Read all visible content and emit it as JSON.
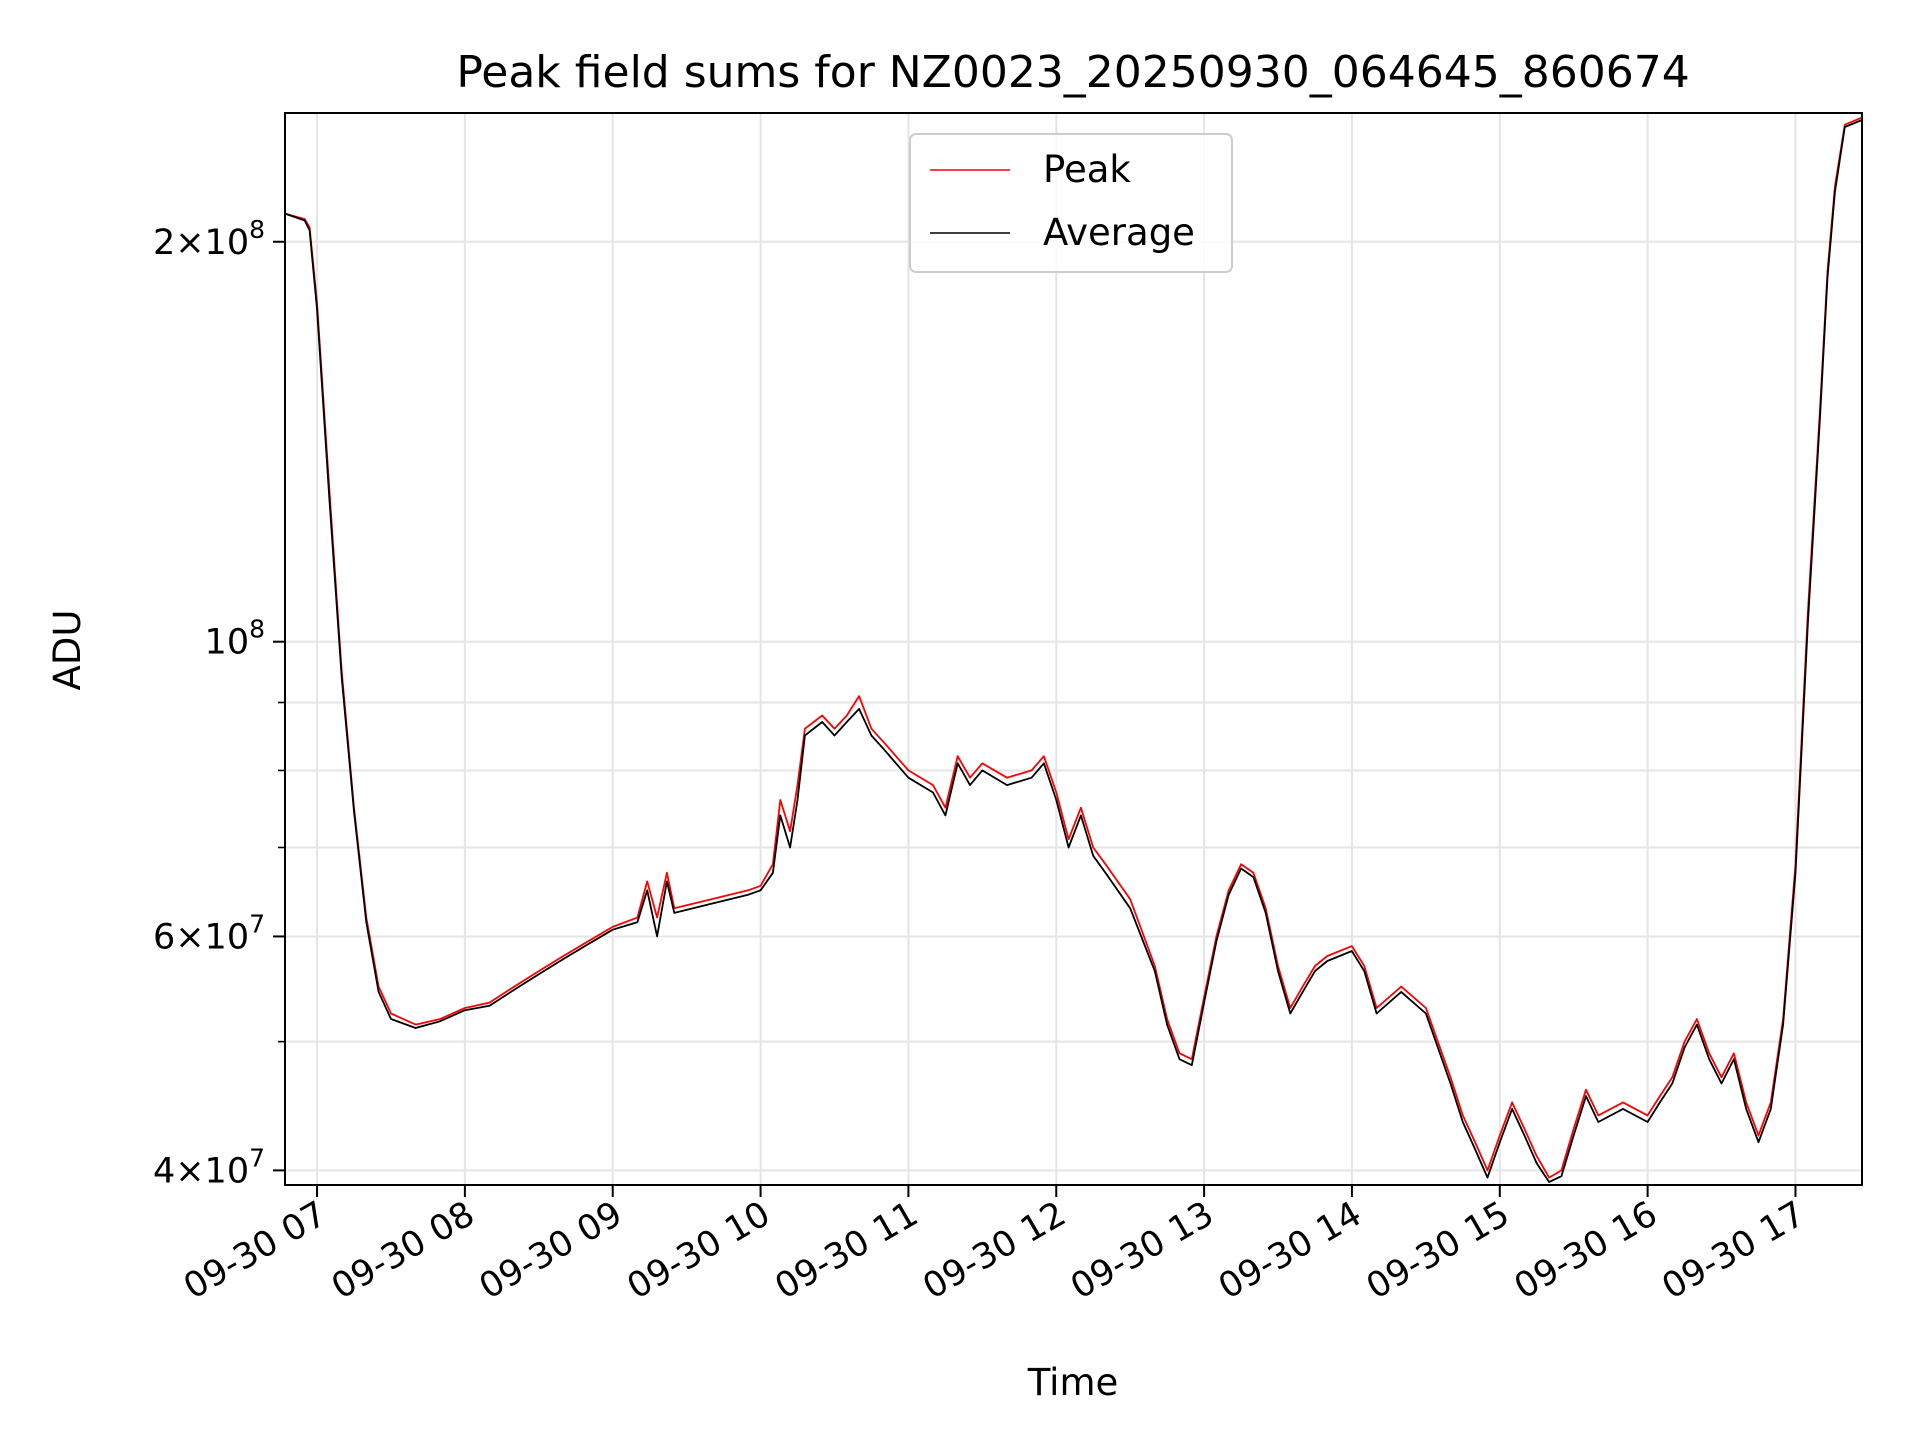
{
  "chart_data": {
    "type": "line",
    "title": "Peak field sums for NZ0023_20250930_064645_860674",
    "xlabel": "Time",
    "ylabel": "ADU",
    "yscale": "log",
    "xlim": [
      "09-30 06:47",
      "09-30 17:27"
    ],
    "ylim": [
      39000000,
      250000000
    ],
    "xticks": [
      "09-30 07",
      "09-30 08",
      "09-30 09",
      "09-30 10",
      "09-30 11",
      "09-30 12",
      "09-30 13",
      "09-30 14",
      "09-30 15",
      "09-30 16",
      "09-30 17"
    ],
    "yticks": [
      {
        "value": 40000000,
        "base": "4×10",
        "exp": "7"
      },
      {
        "value": 60000000,
        "base": "6×10",
        "exp": "7"
      },
      {
        "value": 100000000,
        "base": "10",
        "exp": "8"
      },
      {
        "value": 200000000,
        "base": "2×10",
        "exp": "8"
      }
    ],
    "y_minor_ticks": [
      50000000,
      70000000,
      80000000,
      90000000
    ],
    "grid": true,
    "legend_position": "top-center",
    "series": [
      {
        "name": "Peak",
        "color": "#ff0000",
        "points": [
          [
            "09-30 06:47",
            210000000
          ],
          [
            "09-30 06:55",
            208000000
          ],
          [
            "09-30 06:57",
            205000000
          ],
          [
            "09-30 07:00",
            180000000
          ],
          [
            "09-30 07:05",
            130000000
          ],
          [
            "09-30 07:10",
            95000000
          ],
          [
            "09-30 07:15",
            75000000
          ],
          [
            "09-30 07:20",
            62000000
          ],
          [
            "09-30 07:25",
            55000000
          ],
          [
            "09-30 07:30",
            52500000
          ],
          [
            "09-30 07:40",
            51500000
          ],
          [
            "09-30 07:50",
            52000000
          ],
          [
            "09-30 08:00",
            53000000
          ],
          [
            "09-30 08:10",
            53500000
          ],
          [
            "09-30 08:20",
            55000000
          ],
          [
            "09-30 08:30",
            56500000
          ],
          [
            "09-30 08:40",
            58000000
          ],
          [
            "09-30 08:50",
            59500000
          ],
          [
            "09-30 09:00",
            61000000
          ],
          [
            "09-30 09:10",
            62000000
          ],
          [
            "09-30 09:14",
            66000000
          ],
          [
            "09-30 09:18",
            62000000
          ],
          [
            "09-30 09:22",
            67000000
          ],
          [
            "09-30 09:25",
            63000000
          ],
          [
            "09-30 09:40",
            64000000
          ],
          [
            "09-30 09:55",
            65000000
          ],
          [
            "09-30 10:00",
            65500000
          ],
          [
            "09-30 10:05",
            68000000
          ],
          [
            "09-30 10:08",
            76000000
          ],
          [
            "09-30 10:12",
            72000000
          ],
          [
            "09-30 10:15",
            78000000
          ],
          [
            "09-30 10:18",
            86000000
          ],
          [
            "09-30 10:25",
            88000000
          ],
          [
            "09-30 10:30",
            86000000
          ],
          [
            "09-30 10:35",
            88000000
          ],
          [
            "09-30 10:40",
            91000000
          ],
          [
            "09-30 10:45",
            86000000
          ],
          [
            "09-30 10:50",
            84000000
          ],
          [
            "09-30 11:00",
            80000000
          ],
          [
            "09-30 11:10",
            78000000
          ],
          [
            "09-30 11:15",
            75000000
          ],
          [
            "09-30 11:20",
            82000000
          ],
          [
            "09-30 11:25",
            79000000
          ],
          [
            "09-30 11:30",
            81000000
          ],
          [
            "09-30 11:40",
            79000000
          ],
          [
            "09-30 11:50",
            80000000
          ],
          [
            "09-30 11:55",
            82000000
          ],
          [
            "09-30 12:00",
            77000000
          ],
          [
            "09-30 12:05",
            71000000
          ],
          [
            "09-30 12:10",
            75000000
          ],
          [
            "09-30 12:15",
            70000000
          ],
          [
            "09-30 12:20",
            68000000
          ],
          [
            "09-30 12:30",
            64000000
          ],
          [
            "09-30 12:40",
            57000000
          ],
          [
            "09-30 12:45",
            52000000
          ],
          [
            "09-30 12:50",
            49000000
          ],
          [
            "09-30 12:55",
            48500000
          ],
          [
            "09-30 13:00",
            54000000
          ],
          [
            "09-30 13:05",
            60000000
          ],
          [
            "09-30 13:10",
            65000000
          ],
          [
            "09-30 13:15",
            68000000
          ],
          [
            "09-30 13:20",
            67000000
          ],
          [
            "09-30 13:25",
            63000000
          ],
          [
            "09-30 13:30",
            57000000
          ],
          [
            "09-30 13:35",
            53000000
          ],
          [
            "09-30 13:40",
            55000000
          ],
          [
            "09-30 13:45",
            57000000
          ],
          [
            "09-30 13:50",
            58000000
          ],
          [
            "09-30 14:00",
            59000000
          ],
          [
            "09-30 14:05",
            57000000
          ],
          [
            "09-30 14:10",
            53000000
          ],
          [
            "09-30 14:20",
            55000000
          ],
          [
            "09-30 14:30",
            53000000
          ],
          [
            "09-30 14:40",
            47000000
          ],
          [
            "09-30 14:45",
            44000000
          ],
          [
            "09-30 14:50",
            42000000
          ],
          [
            "09-30 14:55",
            40000000
          ],
          [
            "09-30 15:00",
            42500000
          ],
          [
            "09-30 15:05",
            45000000
          ],
          [
            "09-30 15:10",
            43000000
          ],
          [
            "09-30 15:15",
            41000000
          ],
          [
            "09-30 15:20",
            39500000
          ],
          [
            "09-30 15:25",
            40000000
          ],
          [
            "09-30 15:30",
            43000000
          ],
          [
            "09-30 15:35",
            46000000
          ],
          [
            "09-30 15:40",
            44000000
          ],
          [
            "09-30 15:50",
            45000000
          ],
          [
            "09-30 16:00",
            44000000
          ],
          [
            "09-30 16:05",
            45500000
          ],
          [
            "09-30 16:10",
            47000000
          ],
          [
            "09-30 16:15",
            50000000
          ],
          [
            "09-30 16:20",
            52000000
          ],
          [
            "09-30 16:25",
            49000000
          ],
          [
            "09-30 16:30",
            47000000
          ],
          [
            "09-30 16:35",
            49000000
          ],
          [
            "09-30 16:40",
            45000000
          ],
          [
            "09-30 16:45",
            42500000
          ],
          [
            "09-30 16:50",
            45000000
          ],
          [
            "09-30 16:55",
            52000000
          ],
          [
            "09-30 17:00",
            68000000
          ],
          [
            "09-30 17:05",
            105000000
          ],
          [
            "09-30 17:10",
            150000000
          ],
          [
            "09-30 17:13",
            190000000
          ],
          [
            "09-30 17:16",
            220000000
          ],
          [
            "09-30 17:20",
            245000000
          ],
          [
            "09-30 17:27",
            248000000
          ]
        ]
      },
      {
        "name": "Average",
        "color": "#000000",
        "points": [
          [
            "09-30 06:47",
            210000000
          ],
          [
            "09-30 06:55",
            207500000
          ],
          [
            "09-30 06:57",
            204000000
          ],
          [
            "09-30 07:00",
            178000000
          ],
          [
            "09-30 07:05",
            128000000
          ],
          [
            "09-30 07:10",
            94000000
          ],
          [
            "09-30 07:15",
            74500000
          ],
          [
            "09-30 07:20",
            61500000
          ],
          [
            "09-30 07:25",
            54500000
          ],
          [
            "09-30 07:30",
            52000000
          ],
          [
            "09-30 07:40",
            51200000
          ],
          [
            "09-30 07:50",
            51800000
          ],
          [
            "09-30 08:00",
            52800000
          ],
          [
            "09-30 08:10",
            53200000
          ],
          [
            "09-30 08:20",
            54700000
          ],
          [
            "09-30 08:30",
            56200000
          ],
          [
            "09-30 08:40",
            57700000
          ],
          [
            "09-30 08:50",
            59200000
          ],
          [
            "09-30 09:00",
            60700000
          ],
          [
            "09-30 09:10",
            61500000
          ],
          [
            "09-30 09:14",
            65000000
          ],
          [
            "09-30 09:18",
            60000000
          ],
          [
            "09-30 09:22",
            66000000
          ],
          [
            "09-30 09:25",
            62500000
          ],
          [
            "09-30 09:40",
            63500000
          ],
          [
            "09-30 09:55",
            64500000
          ],
          [
            "09-30 10:00",
            65000000
          ],
          [
            "09-30 10:05",
            67000000
          ],
          [
            "09-30 10:08",
            74000000
          ],
          [
            "09-30 10:12",
            70000000
          ],
          [
            "09-30 10:15",
            76000000
          ],
          [
            "09-30 10:18",
            85000000
          ],
          [
            "09-30 10:25",
            87000000
          ],
          [
            "09-30 10:30",
            85000000
          ],
          [
            "09-30 10:35",
            87000000
          ],
          [
            "09-30 10:40",
            89000000
          ],
          [
            "09-30 10:45",
            85000000
          ],
          [
            "09-30 10:50",
            83000000
          ],
          [
            "09-30 11:00",
            79000000
          ],
          [
            "09-30 11:10",
            77000000
          ],
          [
            "09-30 11:15",
            74000000
          ],
          [
            "09-30 11:20",
            81000000
          ],
          [
            "09-30 11:25",
            78000000
          ],
          [
            "09-30 11:30",
            80000000
          ],
          [
            "09-30 11:40",
            78000000
          ],
          [
            "09-30 11:50",
            79000000
          ],
          [
            "09-30 11:55",
            81000000
          ],
          [
            "09-30 12:00",
            76000000
          ],
          [
            "09-30 12:05",
            70000000
          ],
          [
            "09-30 12:10",
            74000000
          ],
          [
            "09-30 12:15",
            69000000
          ],
          [
            "09-30 12:20",
            67000000
          ],
          [
            "09-30 12:30",
            63000000
          ],
          [
            "09-30 12:40",
            56500000
          ],
          [
            "09-30 12:45",
            51500000
          ],
          [
            "09-30 12:50",
            48500000
          ],
          [
            "09-30 12:55",
            48000000
          ],
          [
            "09-30 13:00",
            53500000
          ],
          [
            "09-30 13:05",
            59500000
          ],
          [
            "09-30 13:10",
            64500000
          ],
          [
            "09-30 13:15",
            67500000
          ],
          [
            "09-30 13:20",
            66500000
          ],
          [
            "09-30 13:25",
            62500000
          ],
          [
            "09-30 13:30",
            56500000
          ],
          [
            "09-30 13:35",
            52500000
          ],
          [
            "09-30 13:40",
            54500000
          ],
          [
            "09-30 13:45",
            56500000
          ],
          [
            "09-30 13:50",
            57500000
          ],
          [
            "09-30 14:00",
            58500000
          ],
          [
            "09-30 14:05",
            56500000
          ],
          [
            "09-30 14:10",
            52500000
          ],
          [
            "09-30 14:20",
            54500000
          ],
          [
            "09-30 14:30",
            52500000
          ],
          [
            "09-30 14:40",
            46500000
          ],
          [
            "09-30 14:45",
            43500000
          ],
          [
            "09-30 14:50",
            41500000
          ],
          [
            "09-30 14:55",
            39500000
          ],
          [
            "09-30 15:00",
            42000000
          ],
          [
            "09-30 15:05",
            44500000
          ],
          [
            "09-30 15:10",
            42500000
          ],
          [
            "09-30 15:15",
            40500000
          ],
          [
            "09-30 15:20",
            39200000
          ],
          [
            "09-30 15:25",
            39600000
          ],
          [
            "09-30 15:30",
            42500000
          ],
          [
            "09-30 15:35",
            45500000
          ],
          [
            "09-30 15:40",
            43500000
          ],
          [
            "09-30 15:50",
            44500000
          ],
          [
            "09-30 16:00",
            43500000
          ],
          [
            "09-30 16:05",
            45000000
          ],
          [
            "09-30 16:10",
            46500000
          ],
          [
            "09-30 16:15",
            49500000
          ],
          [
            "09-30 16:20",
            51500000
          ],
          [
            "09-30 16:25",
            48500000
          ],
          [
            "09-30 16:30",
            46500000
          ],
          [
            "09-30 16:35",
            48500000
          ],
          [
            "09-30 16:40",
            44500000
          ],
          [
            "09-30 16:45",
            42000000
          ],
          [
            "09-30 16:50",
            44500000
          ],
          [
            "09-30 16:55",
            51500000
          ],
          [
            "09-30 17:00",
            67000000
          ],
          [
            "09-30 17:05",
            103000000
          ],
          [
            "09-30 17:10",
            148000000
          ],
          [
            "09-30 17:13",
            188000000
          ],
          [
            "09-30 17:16",
            218000000
          ],
          [
            "09-30 17:20",
            244000000
          ],
          [
            "09-30 17:27",
            247000000
          ]
        ]
      }
    ]
  }
}
